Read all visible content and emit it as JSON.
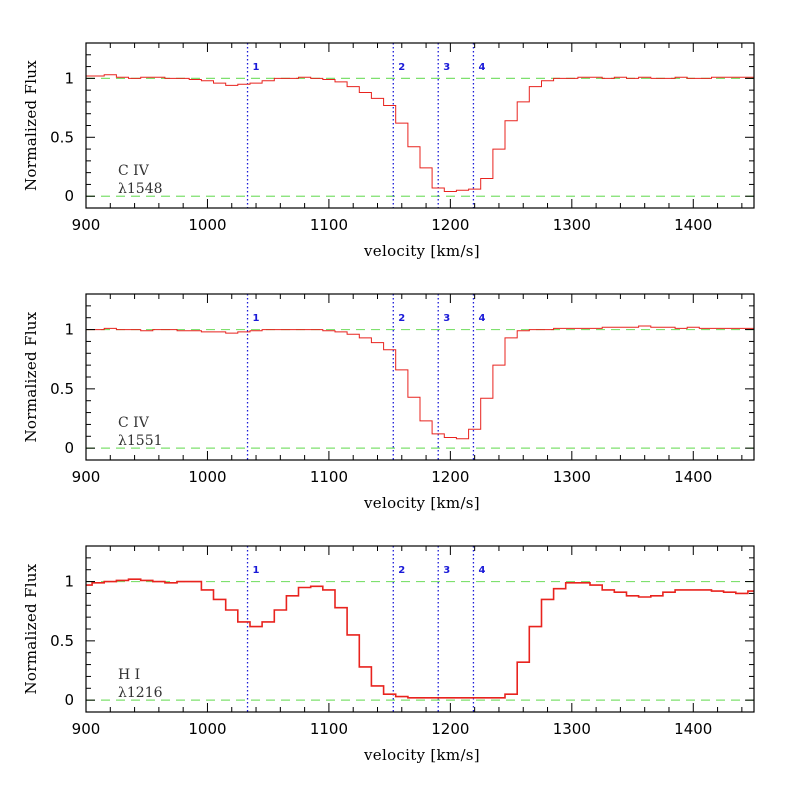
{
  "colors": {
    "spectrum": "#e8231e",
    "continuum": "#7ee06e",
    "marker": "#1a1ad8",
    "axis": "#000000"
  },
  "chart_data": [
    {
      "type": "line",
      "ion": "C IV",
      "line": "λ1548",
      "xlabel": "velocity [km/s]",
      "ylabel": "Normalized Flux",
      "xlim": [
        900,
        1450
      ],
      "ylim": [
        -0.1,
        1.3
      ],
      "xticks": [
        "900",
        "1000",
        "1100",
        "1200",
        "1300",
        "1400"
      ],
      "yticks": [
        "0",
        "0.5",
        "1"
      ],
      "x": [
        900,
        910,
        920,
        930,
        940,
        950,
        960,
        970,
        980,
        990,
        1000,
        1010,
        1020,
        1030,
        1040,
        1050,
        1060,
        1070,
        1080,
        1090,
        1100,
        1110,
        1120,
        1130,
        1140,
        1150,
        1160,
        1170,
        1180,
        1190,
        1200,
        1210,
        1220,
        1230,
        1240,
        1250,
        1260,
        1270,
        1280,
        1290,
        1300,
        1310,
        1320,
        1330,
        1340,
        1350,
        1360,
        1370,
        1380,
        1390,
        1400,
        1410,
        1420,
        1430,
        1440,
        1450
      ],
      "values": [
        1.02,
        1.02,
        1.03,
        1.01,
        1.0,
        1.01,
        1.01,
        1.0,
        1.0,
        0.99,
        0.98,
        0.96,
        0.94,
        0.95,
        0.96,
        0.98,
        1.0,
        1.0,
        1.01,
        1.0,
        0.99,
        0.97,
        0.93,
        0.88,
        0.83,
        0.77,
        0.62,
        0.42,
        0.24,
        0.07,
        0.04,
        0.05,
        0.06,
        0.15,
        0.4,
        0.64,
        0.8,
        0.93,
        0.98,
        1.0,
        1.0,
        1.01,
        1.01,
        1.0,
        1.01,
        1.0,
        1.01,
        1.0,
        1.0,
        1.01,
        1.0,
        1.0,
        1.01,
        1.01,
        1.01,
        1.01
      ],
      "continuum": [
        0,
        1
      ],
      "components": [
        {
          "label": "1",
          "v": 1033
        },
        {
          "label": "2",
          "v": 1153
        },
        {
          "label": "3",
          "v": 1190
        },
        {
          "label": "4",
          "v": 1219
        }
      ]
    },
    {
      "type": "line",
      "ion": "C IV",
      "line": "λ1551",
      "xlabel": "velocity [km/s]",
      "ylabel": "Normalized Flux",
      "xlim": [
        900,
        1450
      ],
      "ylim": [
        -0.1,
        1.3
      ],
      "xticks": [
        "900",
        "1000",
        "1100",
        "1200",
        "1300",
        "1400"
      ],
      "yticks": [
        "0",
        "0.5",
        "1"
      ],
      "x": [
        900,
        910,
        920,
        930,
        940,
        950,
        960,
        970,
        980,
        990,
        1000,
        1010,
        1020,
        1030,
        1040,
        1050,
        1060,
        1070,
        1080,
        1090,
        1100,
        1110,
        1120,
        1130,
        1140,
        1150,
        1160,
        1170,
        1180,
        1190,
        1200,
        1210,
        1220,
        1230,
        1240,
        1250,
        1260,
        1270,
        1280,
        1290,
        1300,
        1310,
        1320,
        1330,
        1340,
        1350,
        1360,
        1370,
        1380,
        1390,
        1400,
        1410,
        1420,
        1430,
        1440,
        1450
      ],
      "values": [
        1.0,
        1.0,
        1.01,
        1.0,
        1.0,
        0.99,
        1.0,
        1.0,
        0.99,
        0.99,
        0.98,
        0.98,
        0.97,
        0.98,
        0.99,
        1.0,
        1.0,
        1.0,
        1.0,
        1.0,
        0.99,
        0.98,
        0.96,
        0.93,
        0.89,
        0.83,
        0.66,
        0.43,
        0.23,
        0.12,
        0.09,
        0.08,
        0.16,
        0.42,
        0.7,
        0.93,
        0.99,
        1.0,
        1.0,
        1.01,
        1.01,
        1.01,
        1.01,
        1.02,
        1.02,
        1.02,
        1.03,
        1.02,
        1.02,
        1.01,
        1.02,
        1.01,
        1.01,
        1.01,
        1.01,
        1.01
      ],
      "continuum": [
        0,
        1
      ],
      "components": [
        {
          "label": "1",
          "v": 1033
        },
        {
          "label": "2",
          "v": 1153
        },
        {
          "label": "3",
          "v": 1190
        },
        {
          "label": "4",
          "v": 1219
        }
      ]
    },
    {
      "type": "line",
      "ion": "H I",
      "line": "λ1216",
      "xlabel": "velocity [km/s]",
      "ylabel": "Normalized Flux",
      "xlim": [
        900,
        1450
      ],
      "ylim": [
        -0.1,
        1.3
      ],
      "xticks": [
        "900",
        "1000",
        "1100",
        "1200",
        "1300",
        "1400"
      ],
      "yticks": [
        "0",
        "0.5",
        "1"
      ],
      "x": [
        900,
        910,
        920,
        930,
        940,
        950,
        960,
        970,
        980,
        990,
        1000,
        1010,
        1020,
        1030,
        1040,
        1050,
        1060,
        1070,
        1080,
        1090,
        1100,
        1110,
        1120,
        1130,
        1140,
        1150,
        1160,
        1170,
        1180,
        1190,
        1200,
        1210,
        1220,
        1230,
        1240,
        1250,
        1260,
        1270,
        1280,
        1290,
        1300,
        1310,
        1320,
        1330,
        1340,
        1350,
        1360,
        1370,
        1380,
        1390,
        1400,
        1410,
        1420,
        1430,
        1440,
        1450
      ],
      "values": [
        0.97,
        0.99,
        1.0,
        1.01,
        1.02,
        1.01,
        1.0,
        0.99,
        1.0,
        1.0,
        0.93,
        0.85,
        0.76,
        0.66,
        0.62,
        0.66,
        0.76,
        0.88,
        0.95,
        0.96,
        0.93,
        0.78,
        0.55,
        0.28,
        0.12,
        0.05,
        0.03,
        0.02,
        0.02,
        0.02,
        0.02,
        0.02,
        0.02,
        0.02,
        0.02,
        0.05,
        0.32,
        0.62,
        0.85,
        0.94,
        0.99,
        0.99,
        0.97,
        0.93,
        0.91,
        0.88,
        0.87,
        0.88,
        0.91,
        0.93,
        0.93,
        0.93,
        0.92,
        0.91,
        0.9,
        0.92
      ],
      "continuum": [
        0,
        1
      ],
      "components": [
        {
          "label": "1",
          "v": 1033
        },
        {
          "label": "2",
          "v": 1153
        },
        {
          "label": "3",
          "v": 1190
        },
        {
          "label": "4",
          "v": 1219
        }
      ]
    }
  ]
}
